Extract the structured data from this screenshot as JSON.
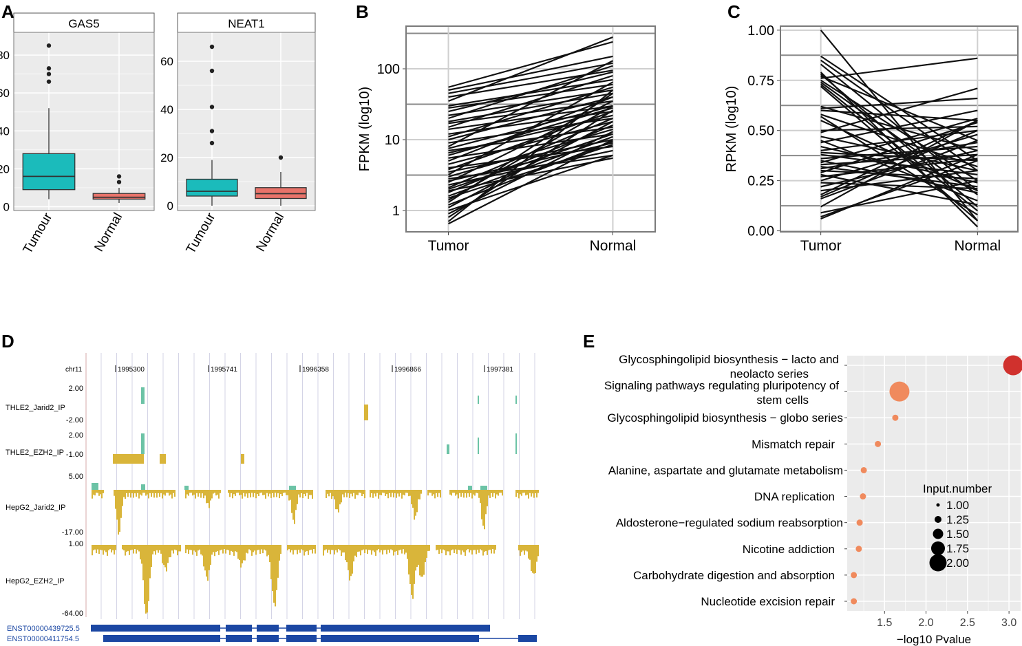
{
  "colors": {
    "tumour_box": "#1BBBBB",
    "normal_box": "#E8736A",
    "panel_bg": "#EBEBEB",
    "grid": "#FFFFFF",
    "line": "#111111",
    "green_track": "#6CC3A6",
    "gold_track": "#D9B53A",
    "gene_blue": "#1B47A3",
    "dot_low": "#F08A5D",
    "dot_high": "#D0312D"
  },
  "panels": {
    "A": {
      "label": "A"
    },
    "B": {
      "label": "B"
    },
    "C": {
      "label": "C"
    },
    "D": {
      "label": "D"
    },
    "E": {
      "label": "E"
    }
  },
  "chart_data": [
    {
      "id": "A-GAS5",
      "type": "box",
      "title": "GAS5",
      "categories": [
        "Tumour",
        "Normal"
      ],
      "ylim": [
        -2,
        92
      ],
      "yticks": [
        0,
        20,
        40,
        60,
        80
      ],
      "boxes": [
        {
          "name": "Tumour",
          "q1": 9,
          "median": 16,
          "q3": 28,
          "low": 4,
          "high": 52,
          "outliers": [
            66,
            70,
            73,
            85
          ]
        },
        {
          "name": "Normal",
          "q1": 4,
          "median": 5,
          "q3": 7,
          "low": 2,
          "high": 10,
          "outliers": [
            13,
            16
          ]
        }
      ]
    },
    {
      "id": "A-NEAT1",
      "type": "box",
      "title": "NEAT1",
      "categories": [
        "Tumour",
        "Normal"
      ],
      "ylim": [
        -2,
        72
      ],
      "yticks": [
        0,
        20,
        40,
        60
      ],
      "boxes": [
        {
          "name": "Tumour",
          "q1": 4,
          "median": 6,
          "q3": 11,
          "low": 0,
          "high": 19,
          "outliers": [
            26,
            31,
            41,
            56,
            66
          ]
        },
        {
          "name": "Normal",
          "q1": 3,
          "median": 5,
          "q3": 7.5,
          "low": 0,
          "high": 14,
          "outliers": [
            20
          ]
        }
      ]
    },
    {
      "id": "B",
      "type": "line",
      "ylabel": "FPKM (log10)",
      "categories": [
        "Tumor",
        "Normal"
      ],
      "yscale": "log10",
      "ylim": [
        0.5,
        400
      ],
      "yticks": [
        1,
        10,
        100
      ],
      "pairs": [
        [
          55,
          240
        ],
        [
          50,
          150
        ],
        [
          45,
          120
        ],
        [
          40,
          95
        ],
        [
          35,
          280
        ],
        [
          30,
          70
        ],
        [
          28,
          60
        ],
        [
          25,
          90
        ],
        [
          22,
          50
        ],
        [
          20,
          110
        ],
        [
          18,
          45
        ],
        [
          17,
          35
        ],
        [
          15,
          80
        ],
        [
          14,
          30
        ],
        [
          12,
          25
        ],
        [
          11,
          55
        ],
        [
          10,
          40
        ],
        [
          9,
          20
        ],
        [
          8,
          130
        ],
        [
          7.5,
          30
        ],
        [
          7,
          15
        ],
        [
          6.5,
          22
        ],
        [
          6,
          28
        ],
        [
          5.5,
          12
        ],
        [
          5,
          40
        ],
        [
          4.5,
          18
        ],
        [
          4,
          8
        ],
        [
          3.8,
          25
        ],
        [
          3.5,
          10
        ],
        [
          3.2,
          65
        ],
        [
          3,
          14
        ],
        [
          2.8,
          6
        ],
        [
          2.6,
          9
        ],
        [
          2.5,
          35
        ],
        [
          2.3,
          7
        ],
        [
          2.1,
          20
        ],
        [
          2,
          12
        ],
        [
          1.9,
          5.5
        ],
        [
          1.8,
          16
        ],
        [
          1.6,
          11
        ],
        [
          1.5,
          8.5
        ],
        [
          1.4,
          30
        ],
        [
          1.3,
          45
        ],
        [
          1.2,
          9.5
        ],
        [
          1.1,
          18
        ],
        [
          1,
          6
        ],
        [
          0.9,
          13
        ],
        [
          0.8,
          26
        ],
        [
          0.7,
          50
        ],
        [
          0.65,
          10
        ]
      ]
    },
    {
      "id": "C",
      "type": "line",
      "ylabel": "RPKM (log10)",
      "categories": [
        "Tumor",
        "Normal"
      ],
      "ylim": [
        -0.005,
        1.02
      ],
      "yticks": [
        "0.00",
        "0.25",
        "0.50",
        "0.75",
        "1.00"
      ],
      "pairs": [
        [
          1.0,
          0.05
        ],
        [
          0.87,
          0.35
        ],
        [
          0.85,
          0.3
        ],
        [
          0.83,
          0.2
        ],
        [
          0.79,
          0.02
        ],
        [
          0.78,
          0.12
        ],
        [
          0.77,
          0.45
        ],
        [
          0.76,
          0.86
        ],
        [
          0.75,
          0.25
        ],
        [
          0.74,
          0.18
        ],
        [
          0.73,
          0.1
        ],
        [
          0.72,
          0.05
        ],
        [
          0.62,
          0.4
        ],
        [
          0.61,
          0.66
        ],
        [
          0.6,
          0.55
        ],
        [
          0.58,
          0.32
        ],
        [
          0.57,
          0.08
        ],
        [
          0.55,
          0.2
        ],
        [
          0.5,
          0.52
        ],
        [
          0.49,
          0.71
        ],
        [
          0.47,
          0.3
        ],
        [
          0.45,
          0.15
        ],
        [
          0.44,
          0.6
        ],
        [
          0.42,
          0.24
        ],
        [
          0.4,
          0.5
        ],
        [
          0.39,
          0.35
        ],
        [
          0.38,
          0.28
        ],
        [
          0.36,
          0.42
        ],
        [
          0.35,
          0.19
        ],
        [
          0.34,
          0.56
        ],
        [
          0.33,
          0.38
        ],
        [
          0.32,
          0.22
        ],
        [
          0.31,
          0.44
        ],
        [
          0.3,
          0.26
        ],
        [
          0.29,
          0.54
        ],
        [
          0.28,
          0.13
        ],
        [
          0.27,
          0.36
        ],
        [
          0.25,
          0.48
        ],
        [
          0.24,
          0.21
        ],
        [
          0.22,
          0.4
        ],
        [
          0.2,
          0.3
        ],
        [
          0.18,
          0.55
        ],
        [
          0.17,
          0.5
        ],
        [
          0.16,
          0.45
        ],
        [
          0.12,
          0.55
        ],
        [
          0.09,
          0.25
        ],
        [
          0.07,
          0.35
        ],
        [
          0.06,
          0.38
        ]
      ]
    },
    {
      "id": "D",
      "type": "genome-tracks",
      "chrom": "chr11",
      "positions": [
        "1995300",
        "1995741",
        "1996358",
        "1996866",
        "1997381"
      ],
      "tracks": [
        {
          "name": "THLE2_Jarid2_IP",
          "max": "2.00",
          "min": "-2.00"
        },
        {
          "name": "THLE2_EZH2_IP",
          "max": "2.00",
          "min": "-1.00"
        },
        {
          "name": "HepG2_Jarid2_IP",
          "max": "5.00",
          "min": "-17.00"
        },
        {
          "name": "HepG2_EZH2_IP",
          "max": "1.00",
          "min": "-64.00"
        }
      ],
      "transcripts": [
        "ENST00000439725.5",
        "ENST00000411754.5"
      ]
    },
    {
      "id": "E",
      "type": "scatter",
      "xlabel": "−log10 Pvalue",
      "xlim": [
        1.05,
        3.14
      ],
      "xticks": [
        "1.5",
        "2.0",
        "2.5",
        "3.0"
      ],
      "categories": [
        [
          "Glycosphingolipid biosynthesis − lacto and",
          "neolacto series"
        ],
        [
          "Signaling pathways regulating pluripotency of",
          "stem cells"
        ],
        [
          "Glycosphingolipid biosynthesis − globo series"
        ],
        [
          "Mismatch repair"
        ],
        [
          "Alanine, aspartate and glutamate metabolism"
        ],
        [
          "DNA replication"
        ],
        [
          "Aldosterone−regulated sodium reabsorption"
        ],
        [
          "Nicotine addiction"
        ],
        [
          "Carbohydrate digestion and absorption"
        ],
        [
          "Nucleotide excision repair"
        ]
      ],
      "x": [
        3.05,
        1.68,
        1.63,
        1.42,
        1.25,
        1.24,
        1.2,
        1.19,
        1.13,
        1.13
      ],
      "size": [
        2.0,
        2.0,
        1.0,
        1.0,
        1.0,
        1.0,
        1.0,
        1.0,
        1.0,
        1.0
      ],
      "legend_title": "Input.number",
      "legend_values": [
        "1.00",
        "1.25",
        "1.50",
        "1.75",
        "2.00"
      ]
    }
  ]
}
